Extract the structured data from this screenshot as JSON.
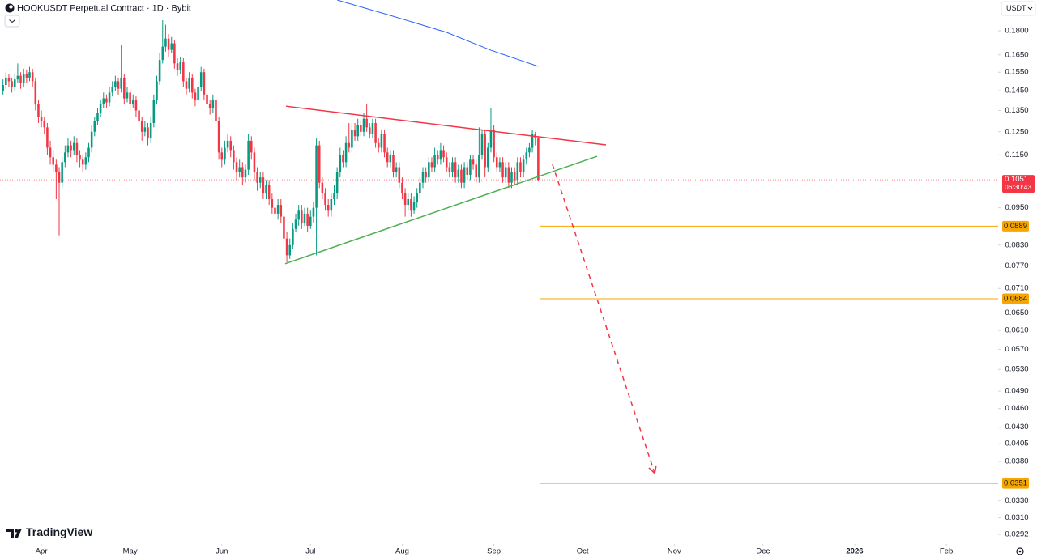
{
  "chart_data": {
    "type": "candlestick",
    "title": "HOOKUSDT Perpetual Contract · 1D · Bybit",
    "currency": "USDT",
    "brand": "TradingView",
    "up_color": "#089981",
    "down_color": "#f23645",
    "log_scale": true,
    "grid": false,
    "xlim": [
      -1,
      336.5
    ],
    "ylim": [
      0.0282,
      0.2012
    ],
    "xticks": [
      {
        "value": 13,
        "label": "Apr"
      },
      {
        "value": 43,
        "label": "May"
      },
      {
        "value": 74,
        "label": "Jun"
      },
      {
        "value": 104,
        "label": "Jul"
      },
      {
        "value": 135,
        "label": "Aug"
      },
      {
        "value": 166,
        "label": "Sep"
      },
      {
        "value": 196,
        "label": "Oct"
      },
      {
        "value": 227,
        "label": "Nov"
      },
      {
        "value": 257,
        "label": "Dec"
      },
      {
        "value": 288,
        "label": "2026"
      },
      {
        "value": 319,
        "label": "Feb"
      }
    ],
    "yticks": [
      {
        "value": 0.18,
        "label": "0.1800"
      },
      {
        "value": 0.165,
        "label": "0.1650"
      },
      {
        "value": 0.155,
        "label": "0.1550"
      },
      {
        "value": 0.145,
        "label": "0.1450"
      },
      {
        "value": 0.135,
        "label": "0.1350"
      },
      {
        "value": 0.125,
        "label": "0.1250"
      },
      {
        "value": 0.115,
        "label": "0.1150"
      },
      {
        "value": 0.095,
        "label": "0.0950"
      },
      {
        "value": 0.083,
        "label": "0.0830"
      },
      {
        "value": 0.077,
        "label": "0.0770"
      },
      {
        "value": 0.071,
        "label": "0.0710"
      },
      {
        "value": 0.065,
        "label": "0.0650"
      },
      {
        "value": 0.061,
        "label": "0.0610"
      },
      {
        "value": 0.057,
        "label": "0.0570"
      },
      {
        "value": 0.053,
        "label": "0.0530"
      },
      {
        "value": 0.049,
        "label": "0.0490"
      },
      {
        "value": 0.046,
        "label": "0.0460"
      },
      {
        "value": 0.043,
        "label": "0.0430"
      },
      {
        "value": 0.0405,
        "label": "0.0405"
      },
      {
        "value": 0.038,
        "label": "0.0380"
      },
      {
        "value": 0.033,
        "label": "0.0330"
      },
      {
        "value": 0.031,
        "label": "0.0310"
      },
      {
        "value": 0.0292,
        "label": "0.0292"
      }
    ],
    "last_price": 0.1051,
    "countdown": "06:30:43",
    "last_color": "#f23645",
    "levels": [
      0.0889,
      0.0684,
      0.0351
    ],
    "level_color": "#f7a600",
    "level_start": 181.5,
    "ma": {
      "color": "#2962ff",
      "x": [
        113,
        130,
        150,
        165,
        181
      ],
      "values": [
        0.2012,
        0.1909,
        0.179,
        0.1678,
        0.1583
      ]
    },
    "drawings": [
      {
        "color": "#f23645",
        "dashed": false,
        "points": [
          [
            95.7,
            0.1371
          ],
          [
            203.9,
            0.1192
          ]
        ]
      },
      {
        "color": "#4caf50",
        "dashed": false,
        "points": [
          [
            95.4,
            0.0776
          ],
          [
            200.9,
            0.1144
          ]
        ]
      },
      {
        "color": "#f23645",
        "dashed": true,
        "points": [
          [
            185.8,
            0.1111
          ],
          [
            220.4,
            0.0364
          ]
        ]
      }
    ],
    "candles": [
      [
        0.145,
        0.151,
        0.143,
        0.148
      ],
      [
        0.148,
        0.155,
        0.146,
        0.152
      ],
      [
        0.152,
        0.154,
        0.147,
        0.15
      ],
      [
        0.15,
        0.152,
        0.144,
        0.147
      ],
      [
        0.147,
        0.154,
        0.145,
        0.151
      ],
      [
        0.151,
        0.16,
        0.149,
        0.153
      ],
      [
        0.153,
        0.155,
        0.146,
        0.149
      ],
      [
        0.149,
        0.157,
        0.147,
        0.154
      ],
      [
        0.154,
        0.156,
        0.149,
        0.152
      ],
      [
        0.152,
        0.158,
        0.15,
        0.155
      ],
      [
        0.155,
        0.157,
        0.147,
        0.15
      ],
      [
        0.15,
        0.152,
        0.135,
        0.138
      ],
      [
        0.138,
        0.14,
        0.129,
        0.132
      ],
      [
        0.132,
        0.135,
        0.127,
        0.13
      ],
      [
        0.13,
        0.132,
        0.124,
        0.127
      ],
      [
        0.127,
        0.129,
        0.115,
        0.118
      ],
      [
        0.118,
        0.121,
        0.111,
        0.114
      ],
      [
        0.114,
        0.117,
        0.108,
        0.111
      ],
      [
        0.111,
        0.113,
        0.098,
        0.108
      ],
      [
        0.108,
        0.11,
        0.086,
        0.104
      ],
      [
        0.104,
        0.114,
        0.102,
        0.112
      ],
      [
        0.112,
        0.119,
        0.11,
        0.116
      ],
      [
        0.116,
        0.122,
        0.114,
        0.119
      ],
      [
        0.119,
        0.121,
        0.114,
        0.117
      ],
      [
        0.117,
        0.123,
        0.115,
        0.12
      ],
      [
        0.12,
        0.122,
        0.112,
        0.115
      ],
      [
        0.115,
        0.117,
        0.11,
        0.113
      ],
      [
        0.113,
        0.115,
        0.108,
        0.111
      ],
      [
        0.111,
        0.116,
        0.109,
        0.114
      ],
      [
        0.114,
        0.12,
        0.112,
        0.118
      ],
      [
        0.118,
        0.128,
        0.116,
        0.125
      ],
      [
        0.125,
        0.132,
        0.123,
        0.13
      ],
      [
        0.13,
        0.136,
        0.128,
        0.134
      ],
      [
        0.134,
        0.14,
        0.132,
        0.138
      ],
      [
        0.138,
        0.144,
        0.136,
        0.141
      ],
      [
        0.141,
        0.143,
        0.136,
        0.139
      ],
      [
        0.139,
        0.147,
        0.137,
        0.144
      ],
      [
        0.144,
        0.15,
        0.142,
        0.147
      ],
      [
        0.147,
        0.153,
        0.145,
        0.15
      ],
      [
        0.15,
        0.152,
        0.143,
        0.146
      ],
      [
        0.146,
        0.171,
        0.144,
        0.152
      ],
      [
        0.152,
        0.154,
        0.138,
        0.141
      ],
      [
        0.141,
        0.147,
        0.139,
        0.144
      ],
      [
        0.144,
        0.146,
        0.135,
        0.138
      ],
      [
        0.138,
        0.143,
        0.136,
        0.14
      ],
      [
        0.14,
        0.142,
        0.132,
        0.135
      ],
      [
        0.135,
        0.137,
        0.127,
        0.13
      ],
      [
        0.13,
        0.132,
        0.121,
        0.125
      ],
      [
        0.125,
        0.13,
        0.123,
        0.127
      ],
      [
        0.127,
        0.129,
        0.119,
        0.122
      ],
      [
        0.122,
        0.132,
        0.12,
        0.129
      ],
      [
        0.129,
        0.143,
        0.127,
        0.14
      ],
      [
        0.14,
        0.153,
        0.138,
        0.15
      ],
      [
        0.15,
        0.166,
        0.148,
        0.162
      ],
      [
        0.162,
        0.187,
        0.16,
        0.17
      ],
      [
        0.17,
        0.184,
        0.167,
        0.175
      ],
      [
        0.175,
        0.178,
        0.164,
        0.168
      ],
      [
        0.168,
        0.176,
        0.166,
        0.172
      ],
      [
        0.172,
        0.174,
        0.157,
        0.16
      ],
      [
        0.16,
        0.163,
        0.153,
        0.156
      ],
      [
        0.156,
        0.164,
        0.154,
        0.161
      ],
      [
        0.161,
        0.163,
        0.147,
        0.15
      ],
      [
        0.15,
        0.152,
        0.143,
        0.146
      ],
      [
        0.146,
        0.155,
        0.144,
        0.152
      ],
      [
        0.152,
        0.154,
        0.141,
        0.144
      ],
      [
        0.144,
        0.146,
        0.137,
        0.14
      ],
      [
        0.14,
        0.15,
        0.138,
        0.147
      ],
      [
        0.147,
        0.158,
        0.145,
        0.155
      ],
      [
        0.155,
        0.157,
        0.14,
        0.143
      ],
      [
        0.143,
        0.145,
        0.135,
        0.138
      ],
      [
        0.138,
        0.14,
        0.133,
        0.136
      ],
      [
        0.136,
        0.143,
        0.134,
        0.14
      ],
      [
        0.14,
        0.142,
        0.127,
        0.13
      ],
      [
        0.13,
        0.132,
        0.113,
        0.116
      ],
      [
        0.116,
        0.118,
        0.11,
        0.113
      ],
      [
        0.113,
        0.121,
        0.111,
        0.118
      ],
      [
        0.118,
        0.124,
        0.116,
        0.121
      ],
      [
        0.121,
        0.123,
        0.114,
        0.117
      ],
      [
        0.117,
        0.119,
        0.109,
        0.112
      ],
      [
        0.112,
        0.114,
        0.105,
        0.108
      ],
      [
        0.108,
        0.113,
        0.106,
        0.11
      ],
      [
        0.11,
        0.112,
        0.103,
        0.106
      ],
      [
        0.106,
        0.111,
        0.104,
        0.109
      ],
      [
        0.109,
        0.124,
        0.107,
        0.121
      ],
      [
        0.121,
        0.123,
        0.113,
        0.116
      ],
      [
        0.116,
        0.118,
        0.105,
        0.108
      ],
      [
        0.108,
        0.11,
        0.101,
        0.104
      ],
      [
        0.104,
        0.108,
        0.102,
        0.106
      ],
      [
        0.106,
        0.108,
        0.098,
        0.1
      ],
      [
        0.1,
        0.105,
        0.098,
        0.103
      ],
      [
        0.103,
        0.105,
        0.096,
        0.098
      ],
      [
        0.098,
        0.1,
        0.093,
        0.095
      ],
      [
        0.095,
        0.097,
        0.091,
        0.093
      ],
      [
        0.093,
        0.098,
        0.091,
        0.096
      ],
      [
        0.096,
        0.098,
        0.09,
        0.092
      ],
      [
        0.092,
        0.094,
        0.083,
        0.085
      ],
      [
        0.085,
        0.087,
        0.078,
        0.08
      ],
      [
        0.08,
        0.085,
        0.079,
        0.083
      ],
      [
        0.083,
        0.09,
        0.082,
        0.088
      ],
      [
        0.088,
        0.093,
        0.087,
        0.091
      ],
      [
        0.091,
        0.096,
        0.089,
        0.094
      ],
      [
        0.094,
        0.096,
        0.088,
        0.09
      ],
      [
        0.09,
        0.095,
        0.089,
        0.093
      ],
      [
        0.093,
        0.095,
        0.087,
        0.089
      ],
      [
        0.089,
        0.094,
        0.088,
        0.092
      ],
      [
        0.092,
        0.097,
        0.09,
        0.095
      ],
      [
        0.095,
        0.122,
        0.08,
        0.119
      ],
      [
        0.119,
        0.121,
        0.102,
        0.104
      ],
      [
        0.104,
        0.106,
        0.098,
        0.1
      ],
      [
        0.1,
        0.102,
        0.094,
        0.096
      ],
      [
        0.096,
        0.098,
        0.092,
        0.094
      ],
      [
        0.094,
        0.1,
        0.092,
        0.098
      ],
      [
        0.098,
        0.103,
        0.096,
        0.1
      ],
      [
        0.1,
        0.11,
        0.098,
        0.108
      ],
      [
        0.108,
        0.118,
        0.106,
        0.115
      ],
      [
        0.115,
        0.117,
        0.11,
        0.112
      ],
      [
        0.112,
        0.123,
        0.11,
        0.12
      ],
      [
        0.12,
        0.129,
        0.116,
        0.118
      ],
      [
        0.118,
        0.129,
        0.116,
        0.126
      ],
      [
        0.126,
        0.129,
        0.121,
        0.123
      ],
      [
        0.123,
        0.131,
        0.121,
        0.128
      ],
      [
        0.128,
        0.13,
        0.123,
        0.125
      ],
      [
        0.125,
        0.134,
        0.123,
        0.131
      ],
      [
        0.131,
        0.138,
        0.125,
        0.127
      ],
      [
        0.127,
        0.129,
        0.122,
        0.124
      ],
      [
        0.124,
        0.131,
        0.122,
        0.129
      ],
      [
        0.129,
        0.131,
        0.118,
        0.12
      ],
      [
        0.12,
        0.122,
        0.116,
        0.118
      ],
      [
        0.118,
        0.126,
        0.116,
        0.124
      ],
      [
        0.124,
        0.126,
        0.114,
        0.116
      ],
      [
        0.116,
        0.118,
        0.11,
        0.112
      ],
      [
        0.112,
        0.117,
        0.11,
        0.115
      ],
      [
        0.115,
        0.117,
        0.106,
        0.108
      ],
      [
        0.108,
        0.112,
        0.106,
        0.11
      ],
      [
        0.11,
        0.112,
        0.102,
        0.104
      ],
      [
        0.104,
        0.106,
        0.098,
        0.1
      ],
      [
        0.1,
        0.102,
        0.092,
        0.096
      ],
      [
        0.096,
        0.1,
        0.094,
        0.098
      ],
      [
        0.098,
        0.1,
        0.092,
        0.094
      ],
      [
        0.094,
        0.099,
        0.093,
        0.097
      ],
      [
        0.097,
        0.102,
        0.095,
        0.1
      ],
      [
        0.1,
        0.106,
        0.098,
        0.104
      ],
      [
        0.104,
        0.11,
        0.102,
        0.108
      ],
      [
        0.108,
        0.11,
        0.104,
        0.106
      ],
      [
        0.106,
        0.114,
        0.104,
        0.112
      ],
      [
        0.112,
        0.114,
        0.108,
        0.11
      ],
      [
        0.11,
        0.118,
        0.108,
        0.115
      ],
      [
        0.115,
        0.117,
        0.111,
        0.113
      ],
      [
        0.113,
        0.12,
        0.111,
        0.117
      ],
      [
        0.117,
        0.119,
        0.112,
        0.114
      ],
      [
        0.114,
        0.116,
        0.108,
        0.11
      ],
      [
        0.11,
        0.112,
        0.106,
        0.108
      ],
      [
        0.108,
        0.114,
        0.106,
        0.112
      ],
      [
        0.112,
        0.114,
        0.104,
        0.106
      ],
      [
        0.106,
        0.111,
        0.104,
        0.109
      ],
      [
        0.109,
        0.111,
        0.102,
        0.104
      ],
      [
        0.104,
        0.112,
        0.102,
        0.11
      ],
      [
        0.11,
        0.112,
        0.105,
        0.107
      ],
      [
        0.107,
        0.115,
        0.105,
        0.113
      ],
      [
        0.113,
        0.115,
        0.109,
        0.111
      ],
      [
        0.111,
        0.113,
        0.104,
        0.106
      ],
      [
        0.106,
        0.127,
        0.104,
        0.115
      ],
      [
        0.115,
        0.126,
        0.113,
        0.124
      ],
      [
        0.124,
        0.126,
        0.106,
        0.11
      ],
      [
        0.11,
        0.12,
        0.108,
        0.118
      ],
      [
        0.118,
        0.136,
        0.116,
        0.126
      ],
      [
        0.126,
        0.128,
        0.112,
        0.114
      ],
      [
        0.114,
        0.116,
        0.108,
        0.11
      ],
      [
        0.11,
        0.114,
        0.108,
        0.112
      ],
      [
        0.112,
        0.114,
        0.104,
        0.106
      ],
      [
        0.106,
        0.112,
        0.104,
        0.11
      ],
      [
        0.11,
        0.112,
        0.102,
        0.104
      ],
      [
        0.104,
        0.11,
        0.102,
        0.108
      ],
      [
        0.108,
        0.11,
        0.103,
        0.105
      ],
      [
        0.105,
        0.114,
        0.103,
        0.112
      ],
      [
        0.112,
        0.114,
        0.106,
        0.108
      ],
      [
        0.108,
        0.115,
        0.106,
        0.113
      ],
      [
        0.113,
        0.118,
        0.111,
        0.116
      ],
      [
        0.116,
        0.12,
        0.114,
        0.118
      ],
      [
        0.118,
        0.126,
        0.116,
        0.124
      ],
      [
        0.124,
        0.125,
        0.119,
        0.122
      ],
      [
        0.122,
        0.123,
        0.1045,
        0.1051
      ]
    ]
  }
}
